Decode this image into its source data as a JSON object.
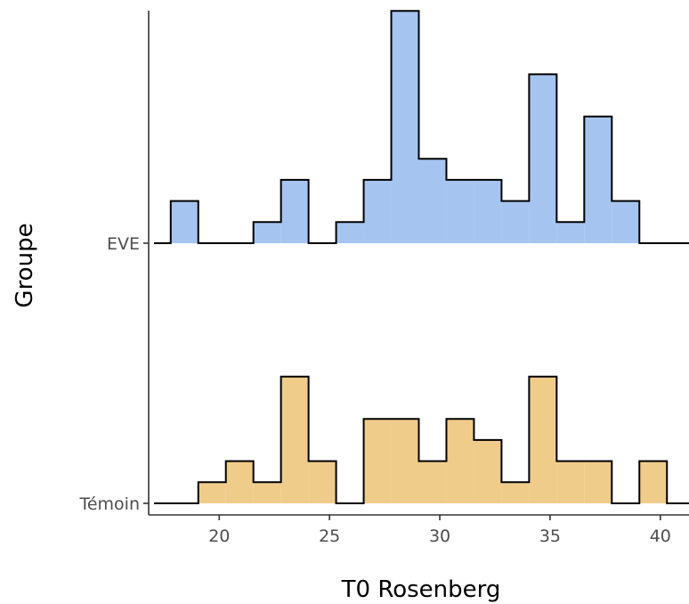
{
  "chart_data": {
    "type": "histogram-ridgeline",
    "xlabel": "T0 Rosenberg",
    "ylabel": "Groupe",
    "xlim": [
      16.8,
      41.3
    ],
    "x_ticks": [
      20,
      25,
      30,
      35,
      40
    ],
    "grid": false,
    "bin_width": 1.25,
    "groups": [
      {
        "name": "EVE",
        "fill": "#a6c4f0",
        "bin_starts": [
          17.8,
          19.05,
          20.3,
          21.55,
          22.8,
          24.05,
          25.3,
          26.55,
          27.8,
          29.05,
          30.3,
          31.55,
          32.8,
          34.05,
          35.3,
          36.55,
          37.8
        ],
        "heights": [
          2,
          0,
          0,
          1,
          3,
          0,
          1,
          3,
          11,
          4,
          3,
          3,
          2,
          8,
          1,
          6,
          2
        ]
      },
      {
        "name": "Témoin",
        "fill": "#f0cc8a",
        "bin_starts": [
          19.05,
          20.3,
          21.55,
          22.8,
          24.05,
          25.3,
          26.55,
          27.8,
          29.05,
          30.3,
          31.55,
          32.8,
          34.05,
          35.3,
          36.55,
          37.8,
          39.05
        ],
        "heights": [
          1,
          2,
          1,
          6,
          2,
          0,
          4,
          4,
          2,
          4,
          3,
          1,
          6,
          2,
          2,
          0,
          2
        ]
      }
    ]
  }
}
